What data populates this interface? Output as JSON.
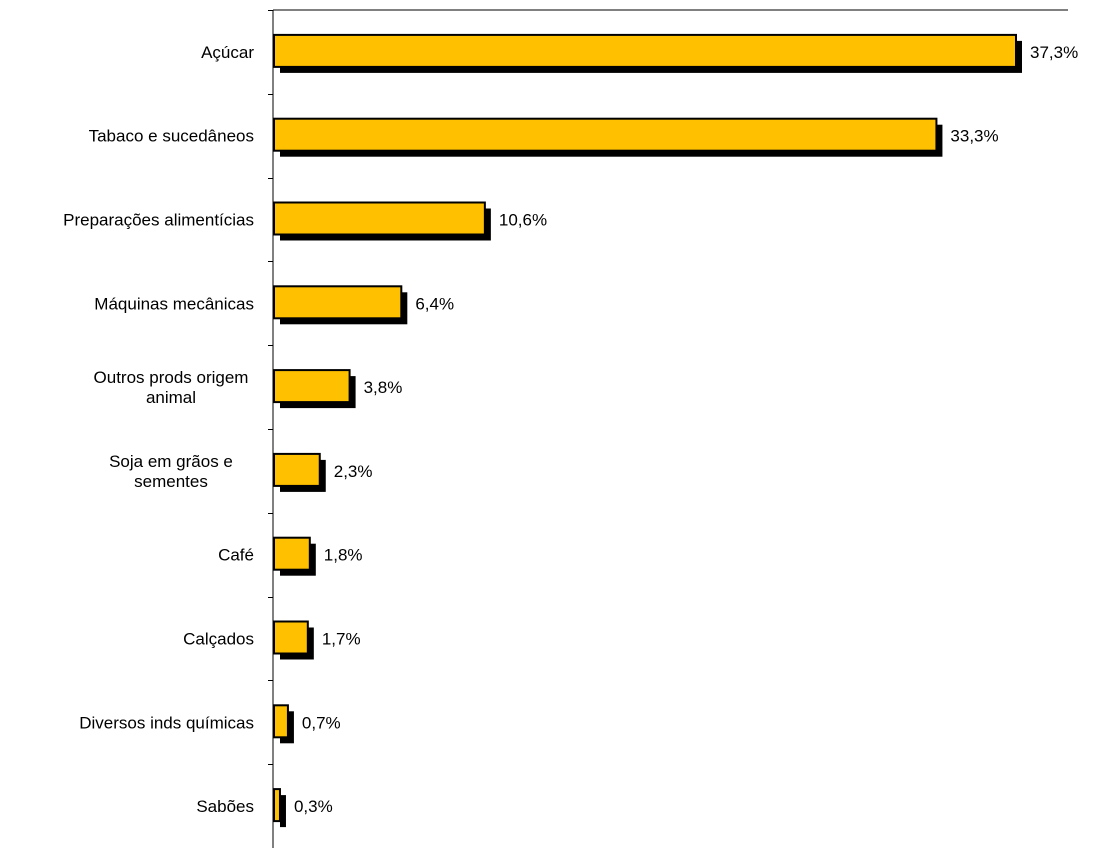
{
  "chart_data": {
    "type": "bar",
    "orientation": "horizontal",
    "title": "",
    "xlabel": "",
    "ylabel": "",
    "categories": [
      [
        "Açúcar"
      ],
      [
        "Tabaco e sucedâneos"
      ],
      [
        "Preparações alimentícias"
      ],
      [
        "Máquinas mecânicas"
      ],
      [
        "Outros prods origem",
        "animal"
      ],
      [
        "Soja em grãos e",
        "sementes"
      ],
      [
        "Café"
      ],
      [
        "Calçados"
      ],
      [
        "Diversos inds químicas"
      ],
      [
        "Sabões"
      ]
    ],
    "values": [
      37.3,
      33.3,
      10.6,
      6.4,
      3.8,
      2.3,
      1.8,
      1.7,
      0.7,
      0.3
    ],
    "value_labels": [
      "37,3%",
      "33,3%",
      "10,6%",
      "6,4%",
      "3,8%",
      "2,3%",
      "1,8%",
      "1,7%",
      "0,7%",
      "0,3%"
    ],
    "unit": "%",
    "xlim": [
      0,
      37.3
    ],
    "grid": false,
    "legend": "none",
    "colors": {
      "bar_fill": "#FFC000",
      "bar_stroke": "#000000",
      "bar_shadow": "#000000",
      "axis": "#000000",
      "text": "#000000"
    }
  }
}
